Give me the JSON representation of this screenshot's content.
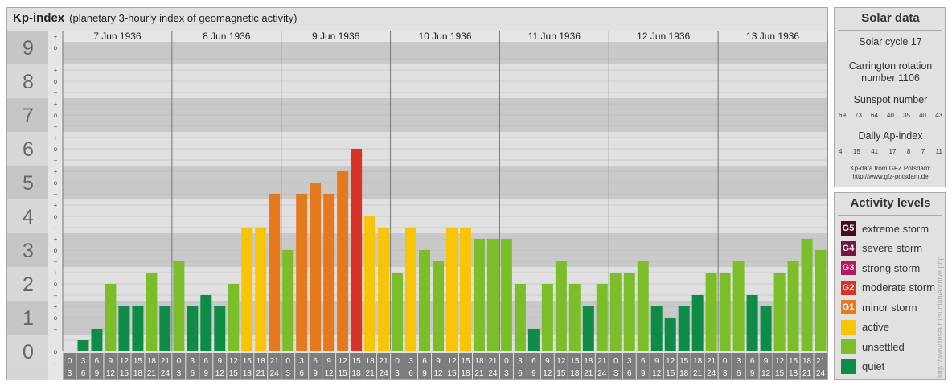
{
  "header": {
    "title": "Kp-index",
    "subtitle": "(planetary 3-hourly index of geomagnetic activity)"
  },
  "solar": {
    "heading": "Solar data",
    "cycle": "Solar cycle 17",
    "carrington_line1": "Carrington rotation",
    "carrington_line2": "number 1106",
    "sunspot_label": "Sunspot number",
    "sunspot_values": [
      "69",
      "73",
      "64",
      "40",
      "35",
      "40",
      "43"
    ],
    "ap_label": "Daily Ap-index",
    "ap_values": [
      "4",
      "15",
      "41",
      "17",
      "8",
      "7",
      "11"
    ],
    "source_line1": "Kp-data from GFZ Potsdam:",
    "source_line2": "http://www.gfz-potsdam.de"
  },
  "legend": {
    "heading": "Activity levels",
    "items": [
      {
        "code": "G5",
        "label": "extreme storm",
        "color": "#4b0a22"
      },
      {
        "code": "G4",
        "label": "severe storm",
        "color": "#7d1045"
      },
      {
        "code": "G3",
        "label": "strong storm",
        "color": "#b5195d"
      },
      {
        "code": "G2",
        "label": "moderate storm",
        "color": "#d73327"
      },
      {
        "code": "G1",
        "label": "minor storm",
        "color": "#e5791d"
      },
      {
        "code": "",
        "label": "active",
        "color": "#f7c408"
      },
      {
        "code": "",
        "label": "unsettled",
        "color": "#7cbe29"
      },
      {
        "code": "",
        "label": "quiet",
        "color": "#0d8b47"
      }
    ]
  },
  "watermark": "http://www.tesla.ru/sunlab/archive.php",
  "chart_data": {
    "type": "bar",
    "ylim": [
      0,
      9
    ],
    "y_ticks": [
      "0",
      "1",
      "2",
      "3",
      "4",
      "5",
      "6",
      "7",
      "8",
      "9"
    ],
    "sub_ticks": [
      "+",
      "o",
      "–"
    ],
    "days": [
      "7 Jun 1936",
      "8 Jun 1936",
      "9 Jun 1936",
      "10 Jun 1936",
      "11 Jun 1936",
      "12 Jun 1936",
      "13 Jun 1936"
    ],
    "interval_start": [
      "0",
      "3",
      "6",
      "9",
      "12",
      "15",
      "18",
      "21"
    ],
    "interval_end": [
      "3",
      "6",
      "9",
      "12",
      "15",
      "18",
      "21",
      "24"
    ],
    "values": [
      0.0,
      0.333,
      0.667,
      2.0,
      1.333,
      1.333,
      2.333,
      1.333,
      2.667,
      1.333,
      1.667,
      1.333,
      2.0,
      3.667,
      3.667,
      4.667,
      3.0,
      4.667,
      5.0,
      4.667,
      5.333,
      6.0,
      4.0,
      3.667,
      2.333,
      3.667,
      3.0,
      2.667,
      3.667,
      3.667,
      3.333,
      3.333,
      3.333,
      2.0,
      0.667,
      2.0,
      2.667,
      2.0,
      1.333,
      2.0,
      2.333,
      2.333,
      2.667,
      1.333,
      1.0,
      1.333,
      1.667,
      2.333,
      2.333,
      2.667,
      1.667,
      1.333,
      2.333,
      2.667,
      3.333,
      3.0
    ],
    "level_colors": {
      "quiet": "#0d8b47",
      "unsettled": "#7cbe29",
      "active": "#f7c408",
      "G1": "#e5791d",
      "G2": "#d73327"
    }
  }
}
